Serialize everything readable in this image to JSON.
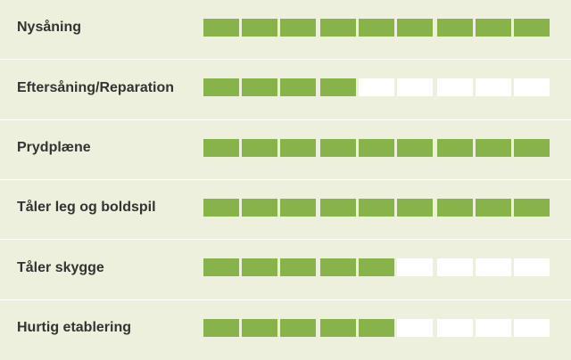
{
  "colors": {
    "background": "#edf0dc",
    "filled": "#88b24a",
    "empty": "#ffffff",
    "label": "#333333"
  },
  "scale_max": 9,
  "rows": [
    {
      "label": "Nysåning",
      "rating": 9
    },
    {
      "label": "Eftersåning/Reparation",
      "rating": 4
    },
    {
      "label": "Prydplæne",
      "rating": 9
    },
    {
      "label": "Tåler leg og boldspil",
      "rating": 9
    },
    {
      "label": "Tåler skygge",
      "rating": 5
    },
    {
      "label": "Hurtig etablering",
      "rating": 5
    }
  ]
}
